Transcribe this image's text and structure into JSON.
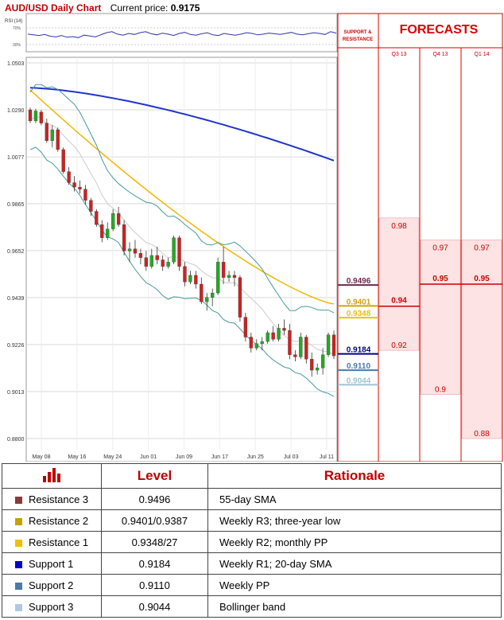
{
  "header": {
    "title": "AUD/USD Daily Chart",
    "price_label": "Current price:",
    "price_value": "0.9175"
  },
  "chart_data": {
    "type": "candlestick",
    "ylim": [
      0.88,
      1.0503
    ],
    "y_ticks": [
      "1.0503",
      "1.0290",
      "1.0077",
      "0.9865",
      "0.9652",
      "0.9439",
      "0.9226",
      "0.9013",
      "0.8800"
    ],
    "x_ticks": [
      "May 08",
      "May 16",
      "May 24",
      "Jun 01",
      "Jun 09",
      "Jun 17",
      "Jun 25",
      "Jul 03",
      "Jul 11"
    ],
    "rsi": {
      "label": "RSI (14)",
      "ticks": [
        "70%",
        "30%"
      ]
    },
    "ohlc": [
      [
        1.029,
        1.03,
        1.023,
        1.024
      ],
      [
        1.024,
        1.0295,
        1.023,
        1.0285
      ],
      [
        1.028,
        1.029,
        1.022,
        1.023
      ],
      [
        1.023,
        1.025,
        1.014,
        1.015
      ],
      [
        1.015,
        1.022,
        1.012,
        1.02
      ],
      [
        1.02,
        1.021,
        1.01,
        1.011
      ],
      [
        1.011,
        1.012,
        1.0,
        1.001
      ],
      [
        1.001,
        1.003,
        0.995,
        0.996
      ],
      [
        0.996,
        0.999,
        0.992,
        0.994
      ],
      [
        0.994,
        0.997,
        0.991,
        0.993
      ],
      [
        0.993,
        0.995,
        0.986,
        0.988
      ],
      [
        0.988,
        0.989,
        0.981,
        0.983
      ],
      [
        0.983,
        0.984,
        0.976,
        0.977
      ],
      [
        0.977,
        0.979,
        0.969,
        0.971
      ],
      [
        0.971,
        0.978,
        0.97,
        0.975
      ],
      [
        0.975,
        0.984,
        0.974,
        0.982
      ],
      [
        0.982,
        0.985,
        0.976,
        0.977
      ],
      [
        0.977,
        0.979,
        0.963,
        0.965
      ],
      [
        0.965,
        0.969,
        0.96,
        0.966
      ],
      [
        0.966,
        0.97,
        0.962,
        0.964
      ],
      [
        0.964,
        0.966,
        0.959,
        0.962
      ],
      [
        0.962,
        0.965,
        0.956,
        0.958
      ],
      [
        0.958,
        0.966,
        0.957,
        0.963
      ],
      [
        0.963,
        0.967,
        0.959,
        0.961
      ],
      [
        0.961,
        0.963,
        0.956,
        0.958
      ],
      [
        0.958,
        0.962,
        0.957,
        0.96
      ],
      [
        0.96,
        0.972,
        0.959,
        0.971
      ],
      [
        0.971,
        0.972,
        0.956,
        0.958
      ],
      [
        0.958,
        0.96,
        0.949,
        0.951
      ],
      [
        0.951,
        0.956,
        0.95,
        0.954
      ],
      [
        0.954,
        0.956,
        0.948,
        0.95
      ],
      [
        0.95,
        0.953,
        0.941,
        0.942
      ],
      [
        0.942,
        0.946,
        0.938,
        0.944
      ],
      [
        0.944,
        0.948,
        0.94,
        0.946
      ],
      [
        0.946,
        0.962,
        0.945,
        0.96
      ],
      [
        0.96,
        0.967,
        0.95,
        0.953
      ],
      [
        0.953,
        0.956,
        0.951,
        0.954
      ],
      [
        0.954,
        0.956,
        0.949,
        0.953
      ],
      [
        0.953,
        0.954,
        0.933,
        0.935
      ],
      [
        0.935,
        0.937,
        0.924,
        0.926
      ],
      [
        0.926,
        0.928,
        0.919,
        0.921
      ],
      [
        0.921,
        0.925,
        0.92,
        0.923
      ],
      [
        0.923,
        0.926,
        0.92,
        0.924
      ],
      [
        0.924,
        0.929,
        0.923,
        0.928
      ],
      [
        0.928,
        0.931,
        0.924,
        0.925
      ],
      [
        0.925,
        0.932,
        0.924,
        0.93
      ],
      [
        0.93,
        0.934,
        0.927,
        0.929
      ],
      [
        0.929,
        0.932,
        0.916,
        0.918
      ],
      [
        0.918,
        0.92,
        0.915,
        0.917
      ],
      [
        0.917,
        0.928,
        0.916,
        0.926
      ],
      [
        0.926,
        0.927,
        0.914,
        0.916
      ],
      [
        0.916,
        0.919,
        0.908,
        0.911
      ],
      [
        0.911,
        0.914,
        0.909,
        0.912
      ],
      [
        0.912,
        0.921,
        0.909,
        0.918
      ],
      [
        0.918,
        0.928,
        0.917,
        0.927
      ],
      [
        0.927,
        0.929,
        0.916,
        0.9175
      ]
    ],
    "levels_panel": {
      "title": "SUPPORT & RESISTANCE",
      "levels": [
        {
          "value": "0.9496",
          "color": "#6e2a4a"
        },
        {
          "value": "0.9401",
          "color": "#d4a017"
        },
        {
          "value": "0.9348",
          "color": "#f0c000"
        },
        {
          "value": "0.9184",
          "color": "#00008b"
        },
        {
          "value": "0.9110",
          "color": "#4a7aa8"
        },
        {
          "value": "0.9044",
          "color": "#9fc4d4"
        }
      ]
    },
    "forecasts": {
      "title": "FORECASTS",
      "columns": [
        {
          "label": "Q3 13",
          "high": "0.98",
          "mid": "0.94",
          "low": "0.92"
        },
        {
          "label": "Q4 13",
          "high": "0.97",
          "mid": "0.95",
          "low": "0.9"
        },
        {
          "label": "Q1 14",
          "high": "0.97",
          "mid": "0.95",
          "low": "0.88"
        }
      ]
    },
    "series_colors": {
      "sma200": "#2233cc",
      "sma55": "#f0b800",
      "bollinger": "#4a9a9a",
      "sma20": "#cccccc",
      "up": "#22aa22",
      "down": "#cc2222"
    }
  },
  "table": {
    "headers": [
      "Level",
      "Rationale"
    ],
    "rows": [
      {
        "name": "Resistance 3",
        "level": "0.9496",
        "rationale": "55-day SMA",
        "color": "#8b3a3a"
      },
      {
        "name": "Resistance 2",
        "level": "0.9401/0.9387",
        "rationale": "Weekly R3; three-year low",
        "color": "#c8a000"
      },
      {
        "name": "Resistance 1",
        "level": "0.9348/27",
        "rationale": "Weekly R2; monthly PP",
        "color": "#f0c000"
      },
      {
        "name": "Support 1",
        "level": "0.9184",
        "rationale": "Weekly R1; 20-day SMA",
        "color": "#0000cc"
      },
      {
        "name": "Support 2",
        "level": "0.9110",
        "rationale": "Weekly PP",
        "color": "#4a7aa8"
      },
      {
        "name": "Support 3",
        "level": "0.9044",
        "rationale": "Bollinger band",
        "color": "#b0c8e0"
      }
    ]
  }
}
